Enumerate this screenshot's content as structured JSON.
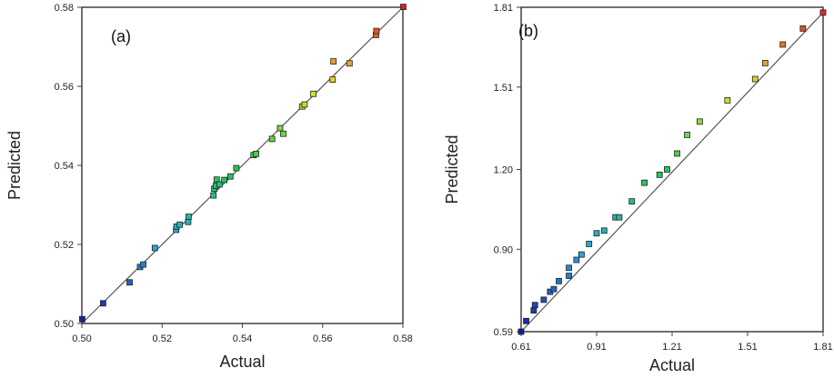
{
  "chart_data": [
    {
      "type": "scatter",
      "panel_label": "(a)",
      "xlabel": "Actual",
      "ylabel": "Predicted",
      "xlim": [
        0.5,
        0.58
      ],
      "ylim": [
        0.5,
        0.58
      ],
      "xticks": [
        "0.50",
        "0.52",
        "0.54",
        "0.56",
        "0.58"
      ],
      "yticks": [
        "0.50",
        "0.52",
        "0.54",
        "0.56",
        "0.58"
      ],
      "xtick_values": [
        0.5,
        0.52,
        0.54,
        0.56,
        0.58
      ],
      "ytick_values": [
        0.5,
        0.52,
        0.54,
        0.56,
        0.58
      ],
      "line": [
        [
          0.5,
          0.5
        ],
        [
          0.58,
          0.58
        ]
      ],
      "points": [
        [
          0.5001,
          0.5011
        ],
        [
          0.5053,
          0.5051
        ],
        [
          0.5119,
          0.5104
        ],
        [
          0.5145,
          0.5143
        ],
        [
          0.5153,
          0.5149
        ],
        [
          0.5182,
          0.5191
        ],
        [
          0.5235,
          0.5237
        ],
        [
          0.5236,
          0.5245
        ],
        [
          0.5244,
          0.525
        ],
        [
          0.5265,
          0.5257
        ],
        [
          0.5266,
          0.527
        ],
        [
          0.5328,
          0.5324
        ],
        [
          0.533,
          0.5341
        ],
        [
          0.5334,
          0.5348
        ],
        [
          0.5336,
          0.5364
        ],
        [
          0.5343,
          0.5352
        ],
        [
          0.5355,
          0.5363
        ],
        [
          0.537,
          0.5372
        ],
        [
          0.5385,
          0.5393
        ],
        [
          0.5428,
          0.5426
        ],
        [
          0.5434,
          0.5429
        ],
        [
          0.5474,
          0.5467
        ],
        [
          0.5494,
          0.5494
        ],
        [
          0.5502,
          0.548
        ],
        [
          0.5549,
          0.5549
        ],
        [
          0.5555,
          0.5554
        ],
        [
          0.5577,
          0.5581
        ],
        [
          0.5625,
          0.5617
        ],
        [
          0.5627,
          0.5663
        ],
        [
          0.5667,
          0.5658
        ],
        [
          0.5733,
          0.573
        ],
        [
          0.5734,
          0.574
        ],
        [
          0.5801,
          0.5801
        ]
      ]
    },
    {
      "type": "scatter",
      "panel_label": "(b)",
      "xlabel": "Actual",
      "ylabel": "Predicted",
      "xlim": [
        0.61,
        1.81
      ],
      "ylim": [
        0.59,
        1.81
      ],
      "xticks": [
        "0.61",
        "0.91",
        "1.21",
        "1.51",
        "1.81"
      ],
      "yticks": [
        "0.59",
        "0.90",
        "1.20",
        "1.51",
        "1.81"
      ],
      "xtick_values": [
        0.61,
        0.91,
        1.21,
        1.51,
        1.81
      ],
      "ytick_values": [
        0.59,
        0.9,
        1.2,
        1.51,
        1.81
      ],
      "line": [
        [
          0.61,
          0.59
        ],
        [
          1.81,
          1.79
        ]
      ],
      "points": [
        [
          0.61,
          0.59
        ],
        [
          0.63,
          0.63
        ],
        [
          0.66,
          0.67
        ],
        [
          0.665,
          0.69
        ],
        [
          0.7,
          0.71
        ],
        [
          0.725,
          0.74
        ],
        [
          0.74,
          0.75
        ],
        [
          0.76,
          0.78
        ],
        [
          0.8,
          0.8
        ],
        [
          0.8,
          0.83
        ],
        [
          0.83,
          0.86
        ],
        [
          0.85,
          0.88
        ],
        [
          0.88,
          0.92
        ],
        [
          0.91,
          0.96
        ],
        [
          0.94,
          0.97
        ],
        [
          0.985,
          1.02
        ],
        [
          1.0,
          1.02
        ],
        [
          1.05,
          1.08
        ],
        [
          1.1,
          1.15
        ],
        [
          1.16,
          1.18
        ],
        [
          1.19,
          1.2
        ],
        [
          1.23,
          1.26
        ],
        [
          1.27,
          1.33
        ],
        [
          1.32,
          1.38
        ],
        [
          1.43,
          1.46
        ],
        [
          1.54,
          1.54
        ],
        [
          1.58,
          1.6
        ],
        [
          1.65,
          1.67
        ],
        [
          1.73,
          1.73
        ],
        [
          1.81,
          1.79
        ]
      ]
    }
  ]
}
